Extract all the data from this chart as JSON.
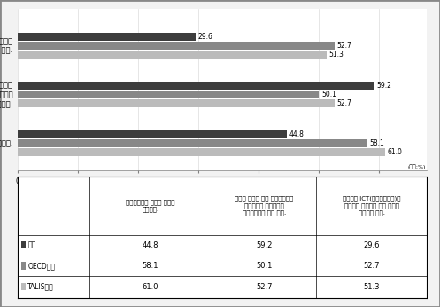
{
  "categories": [
    "학생들이 ICT(정보통신기술)를 사용하여\n프로젝트 또는 과제를 수행하게 한다.",
    "문제나 과제에 대한 공동해결책을\n찾아내도록 학생들에게\n소그룹활동을 하게한다.",
    "비판적사고를 요하는 과제를 제공한다."
  ],
  "series_names": [
    "한국",
    "OECD평균",
    "TALIS평균"
  ],
  "series_values": {
    "한국": [
      29.6,
      59.2,
      44.8
    ],
    "OECD평균": [
      52.7,
      50.1,
      58.1
    ],
    "TALIS평균": [
      51.3,
      52.7,
      61.0
    ]
  },
  "colors": {
    "한국": "#3d3d3d",
    "OECD평균": "#888888",
    "TALIS평균": "#bbbbbb"
  },
  "bar_height": 0.18,
  "unit": "(단위:%)",
  "xlim_max": 68,
  "bg_color": "#f2f2f2",
  "chart_bg": "#ffffff",
  "table_bg": "#ffffff",
  "table_headers": [
    "비판적사고를 요하는 과제를\n제공한다.",
    "문제나 과제에 대한 공동해결책을\n찾아내도록 학생들에게\n소그룹활동을 하게 한다.",
    "학생들이 ICT(정보통신기술)를\n사용하여 프로젝트 또는 과제를\n수행하게 한다."
  ],
  "table_row_labels": [
    "■한국",
    "■OECD평균",
    "※TALIS평균"
  ],
  "table_values": [
    [
      "44.8",
      "59.2",
      "29.6"
    ],
    [
      "58.1",
      "50.1",
      "52.7"
    ],
    [
      "61.0",
      "52.7",
      "51.3"
    ]
  ],
  "table_label_colors": [
    "#3d3d3d",
    "#888888",
    "#bbbbbb"
  ],
  "outer_border_color": "#888888",
  "inner_border_color": "#888888",
  "label_fontsize": 6.0,
  "value_fontsize": 5.5,
  "tick_fontsize": 5.5,
  "table_header_fontsize": 5.0,
  "table_val_fontsize": 6.0,
  "table_label_fontsize": 5.5
}
